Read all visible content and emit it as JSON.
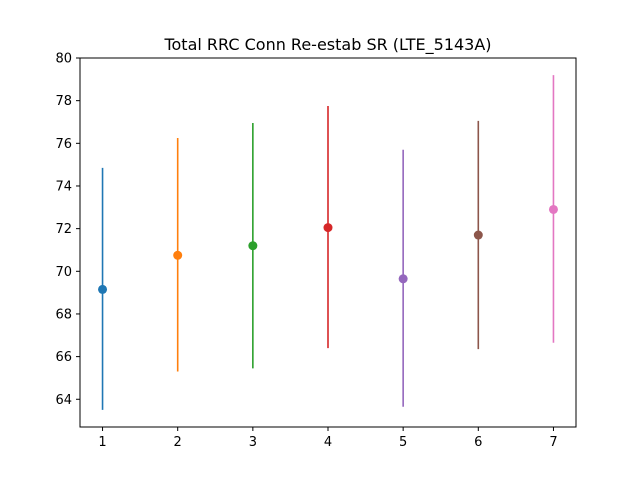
{
  "chart_data": {
    "type": "scatter",
    "title": "Total RRC Conn Re-estab SR (LTE_5143A)",
    "xlabel": "",
    "ylabel": "",
    "xlim": [
      0.7,
      7.3
    ],
    "ylim": [
      62.7,
      80.0
    ],
    "x_ticks": [
      1,
      2,
      3,
      4,
      5,
      6,
      7
    ],
    "y_ticks": [
      64,
      66,
      68,
      70,
      72,
      74,
      76,
      78,
      80
    ],
    "grid": false,
    "points": [
      {
        "x": 1,
        "y": 69.15,
        "low": 63.5,
        "high": 74.85,
        "color": "#1f77b4"
      },
      {
        "x": 2,
        "y": 70.75,
        "low": 65.3,
        "high": 76.25,
        "color": "#ff7f0e"
      },
      {
        "x": 3,
        "y": 71.2,
        "low": 65.45,
        "high": 76.95,
        "color": "#2ca02c"
      },
      {
        "x": 4,
        "y": 72.05,
        "low": 66.4,
        "high": 77.75,
        "color": "#d62728"
      },
      {
        "x": 5,
        "y": 69.65,
        "low": 63.65,
        "high": 75.7,
        "color": "#9467bd"
      },
      {
        "x": 6,
        "y": 71.7,
        "low": 66.35,
        "high": 77.05,
        "color": "#8c564b"
      },
      {
        "x": 7,
        "y": 72.9,
        "low": 66.65,
        "high": 79.2,
        "color": "#e377c2"
      }
    ]
  }
}
